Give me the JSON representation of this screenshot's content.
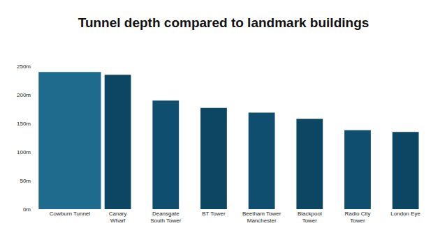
{
  "chart_data": {
    "type": "bar",
    "title": "Tunnel depth compared to landmark buildings",
    "categories": [
      "Cowburn Tunnel",
      "Canary\nWharf",
      "Deansgate\nSouth Tower",
      "BT Tower",
      "Beetham Tower\nManchester",
      "Blackpool\nTower",
      "Radio City\nTower",
      "London Eye"
    ],
    "values": [
      240,
      235,
      190,
      177,
      169,
      158,
      138,
      135
    ],
    "colors": [
      "#1f6b8e",
      "#0d4663",
      "#0f4e6e",
      "#0d4663",
      "#0f4e6e",
      "#0d4663",
      "#0f4e6e",
      "#0d4663"
    ],
    "ylim": [
      0,
      250
    ],
    "yticks": [
      {
        "value": 0,
        "label": "0m"
      },
      {
        "value": 50,
        "label": "50m"
      },
      {
        "value": 100,
        "label": "100m"
      },
      {
        "value": 150,
        "label": "150m"
      },
      {
        "value": 200,
        "label": "200m"
      },
      {
        "value": 250,
        "label": "250m"
      }
    ],
    "grid": false,
    "data_labels": false
  }
}
